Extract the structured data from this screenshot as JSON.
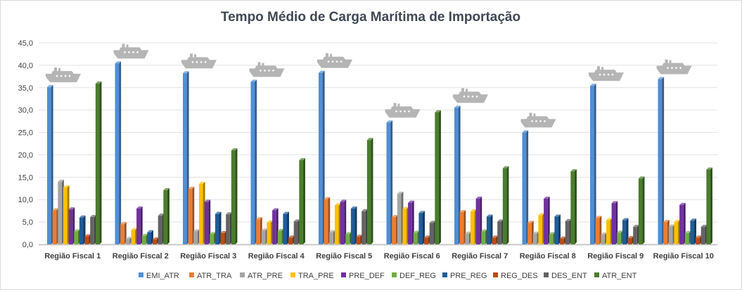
{
  "chart_data": {
    "type": "bar",
    "title": "Tempo Médio de Carga Marítima  de Importação",
    "xlabel": "",
    "ylabel": "",
    "ylim": [
      0,
      45
    ],
    "yticks": [
      "0,0",
      "5,0",
      "10,0",
      "15,0",
      "20,0",
      "25,0",
      "30,0",
      "35,0",
      "40,0",
      "45,0"
    ],
    "grid": true,
    "legend_position": "bottom",
    "categories": [
      "Região Fiscal 1",
      "Região Fiscal 2",
      "Região Fiscal 3",
      "Região Fiscal 4",
      "Região Fiscal 5",
      "Região Fiscal 6",
      "Região Fiscal 7",
      "Região Fiscal 8",
      "Região Fiscal 9",
      "Região Fiscal 10"
    ],
    "series": [
      {
        "name": "EMI_ATR",
        "color": "#4f8fd6",
        "values": [
          35.1,
          40.4,
          38.2,
          36.3,
          38.3,
          27.2,
          30.5,
          25.0,
          35.4,
          36.9
        ]
      },
      {
        "name": "ATR_TRA",
        "color": "#ed7d31",
        "values": [
          7.6,
          4.5,
          12.4,
          5.6,
          10.1,
          6.1,
          7.2,
          4.8,
          5.9,
          5.0
        ]
      },
      {
        "name": "ATR_PRE",
        "color": "#a5a5a5",
        "values": [
          14.0,
          1.2,
          2.9,
          3.1,
          2.7,
          11.3,
          2.4,
          2.4,
          2.2,
          4.0
        ]
      },
      {
        "name": "TRA_PRE",
        "color": "#ffc000",
        "values": [
          12.7,
          3.2,
          13.5,
          4.9,
          8.7,
          7.9,
          7.4,
          6.5,
          5.4,
          5.0
        ]
      },
      {
        "name": "PRE_DEF",
        "color": "#7030a0",
        "values": [
          7.8,
          8.0,
          9.5,
          7.6,
          9.5,
          9.3,
          10.2,
          10.2,
          9.2,
          8.8
        ]
      },
      {
        "name": "DEF_REG",
        "color": "#70ad47",
        "values": [
          2.9,
          1.9,
          2.3,
          3.0,
          2.3,
          2.6,
          2.9,
          2.3,
          2.6,
          2.5
        ]
      },
      {
        "name": "PRE_REG",
        "color": "#1f5c99",
        "values": [
          6.0,
          2.7,
          6.8,
          6.8,
          8.0,
          7.0,
          6.2,
          6.2,
          5.4,
          5.3
        ]
      },
      {
        "name": "REG_DES",
        "color": "#b84c16",
        "values": [
          1.8,
          1.1,
          2.5,
          1.5,
          1.7,
          1.5,
          1.5,
          1.3,
          1.4,
          1.5
        ]
      },
      {
        "name": "DES_ENT",
        "color": "#636363",
        "values": [
          6.1,
          6.4,
          6.7,
          5.1,
          7.4,
          4.8,
          5.1,
          5.2,
          3.9,
          3.9
        ]
      },
      {
        "name": "ATR_ENT",
        "color": "#4a7d2c",
        "values": [
          35.9,
          12.1,
          21.0,
          18.8,
          23.3,
          29.5,
          17.0,
          16.3,
          14.7,
          16.7
        ]
      }
    ]
  }
}
